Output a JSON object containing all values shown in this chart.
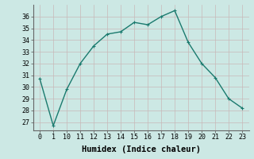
{
  "x": [
    0,
    1,
    10,
    11,
    12,
    13,
    14,
    15,
    16,
    17,
    18,
    19,
    20,
    21,
    22,
    23
  ],
  "y": [
    30.7,
    26.7,
    29.8,
    32.0,
    33.5,
    34.5,
    34.7,
    35.5,
    35.3,
    36.0,
    36.5,
    33.8,
    32.0,
    30.8,
    29.0,
    28.2
  ],
  "line_color": "#1a7a6e",
  "marker": "+",
  "marker_size": 3,
  "bg_color": "#cce8e4",
  "hgrid_color": "#c8b8b8",
  "vgrid_color": "#c8b8b8",
  "xlabel": "Humidex (Indice chaleur)",
  "xlabel_fontsize": 7.5,
  "yticks": [
    27,
    28,
    29,
    30,
    31,
    32,
    33,
    34,
    35,
    36
  ],
  "ylim": [
    26.3,
    37.0
  ],
  "tick_fontsize": 6.0,
  "line_width": 1.0
}
